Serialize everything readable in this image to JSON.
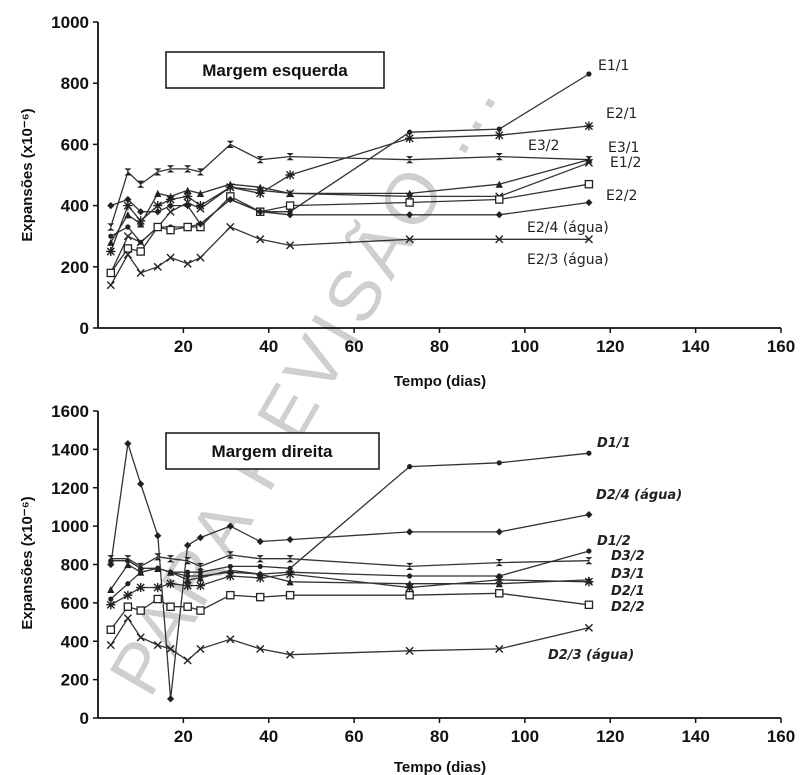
{
  "watermark": "PARA REVISÃO ...",
  "chart_data": [
    {
      "type": "line",
      "title": "Margem esquerda",
      "xlabel": "Tempo (dias)",
      "ylabel": "Expansões (x10⁻⁶)",
      "xlim": [
        0,
        160
      ],
      "ylim": [
        0,
        1000
      ],
      "xticks": [
        20,
        40,
        60,
        80,
        100,
        120,
        140,
        160
      ],
      "yticks": [
        0,
        200,
        400,
        600,
        800,
        1000
      ],
      "grid": false,
      "series": [
        {
          "name": "E1/1",
          "marker": "dot",
          "x": [
            3,
            7,
            10,
            14,
            17,
            21,
            24,
            31,
            38,
            45,
            73,
            94,
            115
          ],
          "y": [
            300,
            330,
            280,
            330,
            330,
            330,
            340,
            420,
            380,
            380,
            640,
            650,
            830
          ]
        },
        {
          "name": "E2/1",
          "marker": "star",
          "x": [
            3,
            7,
            10,
            14,
            17,
            21,
            24,
            31,
            38,
            45,
            73,
            94,
            115
          ],
          "y": [
            250,
            400,
            350,
            400,
            420,
            430,
            400,
            460,
            440,
            500,
            620,
            630,
            660
          ]
        },
        {
          "name": "E3/2",
          "marker": "hourglass",
          "x": [
            3,
            7,
            10,
            14,
            17,
            21,
            24,
            31,
            38,
            45,
            73,
            94,
            115
          ],
          "y": [
            330,
            510,
            470,
            510,
            520,
            520,
            510,
            600,
            550,
            560,
            550,
            560,
            550
          ]
        },
        {
          "name": "E3/1",
          "marker": "triangle",
          "x": [
            3,
            7,
            10,
            14,
            17,
            21,
            24,
            31,
            38,
            45,
            73,
            94,
            115
          ],
          "y": [
            280,
            370,
            340,
            440,
            430,
            450,
            440,
            470,
            460,
            440,
            440,
            470,
            550
          ]
        },
        {
          "name": "E1/2",
          "marker": "x",
          "x": [
            3,
            7,
            10,
            14,
            17,
            21,
            24,
            31,
            38,
            45,
            73,
            94,
            115
          ],
          "y": [
            180,
            300,
            280,
            330,
            380,
            410,
            390,
            460,
            450,
            440,
            430,
            430,
            540
          ]
        },
        {
          "name": "E2/2",
          "marker": "square",
          "x": [
            3,
            7,
            10,
            14,
            17,
            21,
            24,
            31,
            38,
            45,
            73,
            94,
            115
          ],
          "y": [
            180,
            260,
            250,
            330,
            320,
            330,
            330,
            430,
            380,
            400,
            410,
            420,
            470
          ]
        },
        {
          "name": "E2/4 (água)",
          "marker": "diamond",
          "x": [
            3,
            7,
            10,
            14,
            17,
            21,
            24,
            31,
            38,
            45,
            73,
            94,
            115
          ],
          "y": [
            400,
            420,
            380,
            380,
            400,
            400,
            340,
            420,
            380,
            370,
            370,
            370,
            410
          ]
        },
        {
          "name": "E2/3 (água)",
          "marker": "x",
          "x": [
            3,
            7,
            10,
            14,
            17,
            21,
            24,
            31,
            38,
            45,
            73,
            94,
            115
          ],
          "y": [
            140,
            240,
            180,
            200,
            230,
            210,
            230,
            330,
            290,
            270,
            290,
            290,
            290
          ]
        }
      ]
    },
    {
      "type": "line",
      "title": "Margem direita",
      "xlabel": "Tempo (dias)",
      "ylabel": "Expansões (x10⁻⁶)",
      "xlim": [
        0,
        160
      ],
      "ylim": [
        0,
        1600
      ],
      "xticks": [
        20,
        40,
        60,
        80,
        100,
        120,
        140,
        160
      ],
      "yticks": [
        0,
        200,
        400,
        600,
        800,
        1000,
        1200,
        1400,
        1600
      ],
      "grid": false,
      "series": [
        {
          "name": "D1/1",
          "marker": "dot",
          "x": [
            3,
            7,
            10,
            14,
            17,
            21,
            24,
            31,
            38,
            45,
            73,
            94,
            115
          ],
          "y": [
            820,
            820,
            780,
            780,
            760,
            760,
            760,
            790,
            790,
            780,
            1310,
            1330,
            1380
          ]
        },
        {
          "name": "D2/4 (água)",
          "marker": "diamond",
          "x": [
            3,
            7,
            10,
            14,
            17,
            21,
            24,
            31,
            38,
            45,
            73,
            94,
            115
          ],
          "y": [
            800,
            1430,
            1220,
            950,
            100,
            900,
            940,
            1000,
            920,
            930,
            970,
            970,
            1060
          ]
        },
        {
          "name": "D1/2",
          "marker": "dot",
          "x": [
            3,
            7,
            10,
            14,
            17,
            21,
            24,
            31,
            38,
            45,
            73,
            94,
            115
          ],
          "y": [
            620,
            700,
            760,
            780,
            760,
            740,
            740,
            760,
            750,
            760,
            740,
            740,
            870
          ]
        },
        {
          "name": "D3/2",
          "marker": "hourglass",
          "x": [
            3,
            7,
            10,
            14,
            17,
            21,
            24,
            31,
            38,
            45,
            73,
            94,
            115
          ],
          "y": [
            830,
            830,
            790,
            840,
            830,
            820,
            790,
            850,
            830,
            830,
            790,
            810,
            820
          ]
        },
        {
          "name": "D3/1",
          "marker": "triangle",
          "x": [
            3,
            7,
            10,
            14,
            17,
            21,
            24,
            31,
            38,
            45,
            73,
            94,
            115
          ],
          "y": [
            670,
            800,
            760,
            780,
            760,
            720,
            730,
            770,
            750,
            710,
            700,
            700,
            720
          ]
        },
        {
          "name": "D2/1",
          "marker": "star",
          "x": [
            3,
            7,
            10,
            14,
            17,
            21,
            24,
            31,
            38,
            45,
            73,
            94,
            115
          ],
          "y": [
            590,
            640,
            680,
            680,
            700,
            690,
            690,
            740,
            730,
            750,
            680,
            720,
            710
          ]
        },
        {
          "name": "D2/2",
          "marker": "square",
          "x": [
            3,
            7,
            10,
            14,
            17,
            21,
            24,
            31,
            38,
            45,
            73,
            94,
            115
          ],
          "y": [
            460,
            580,
            560,
            620,
            580,
            580,
            560,
            640,
            630,
            640,
            640,
            650,
            590
          ]
        },
        {
          "name": "D2/3 (água)",
          "marker": "x",
          "x": [
            3,
            7,
            10,
            14,
            17,
            21,
            24,
            31,
            38,
            45,
            73,
            94,
            115
          ],
          "y": [
            380,
            520,
            420,
            380,
            360,
            300,
            360,
            410,
            360,
            330,
            350,
            360,
            470
          ]
        }
      ]
    }
  ]
}
